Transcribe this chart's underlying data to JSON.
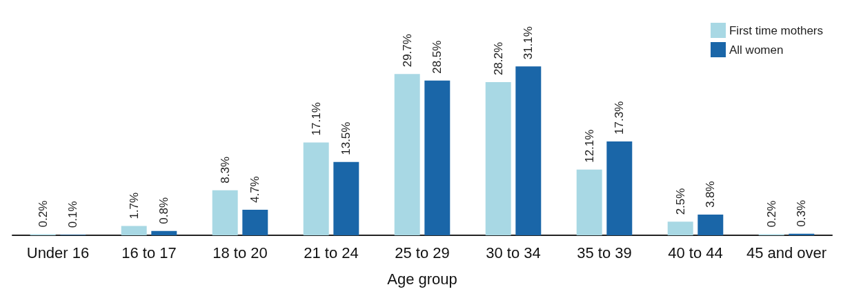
{
  "chart_data": {
    "type": "bar",
    "xlabel": "Age group",
    "categories": [
      "Under 16",
      "16 to 17",
      "18 to 20",
      "21 to 24",
      "25 to 29",
      "30 to 34",
      "35 to 39",
      "40 to 44",
      "45 and over"
    ],
    "series": [
      {
        "name": "First time mothers",
        "color": "#a8d8e4",
        "values": [
          0.2,
          1.7,
          8.3,
          17.1,
          29.7,
          28.2,
          12.1,
          2.5,
          0.2
        ],
        "value_labels": [
          "0.2%",
          "1.7%",
          "8.3%",
          "17.1%",
          "29.7%",
          "28.2%",
          "12.1%",
          "2.5%",
          "0.2%"
        ]
      },
      {
        "name": "All women",
        "color": "#1a66a8",
        "values": [
          0.1,
          0.8,
          4.7,
          13.5,
          28.5,
          31.1,
          17.3,
          3.8,
          0.3
        ],
        "value_labels": [
          "0.1%",
          "0.8%",
          "4.7%",
          "13.5%",
          "28.5%",
          "31.1%",
          "17.3%",
          "3.8%",
          "0.3%"
        ]
      }
    ],
    "legend": "top right",
    "grid": false
  }
}
